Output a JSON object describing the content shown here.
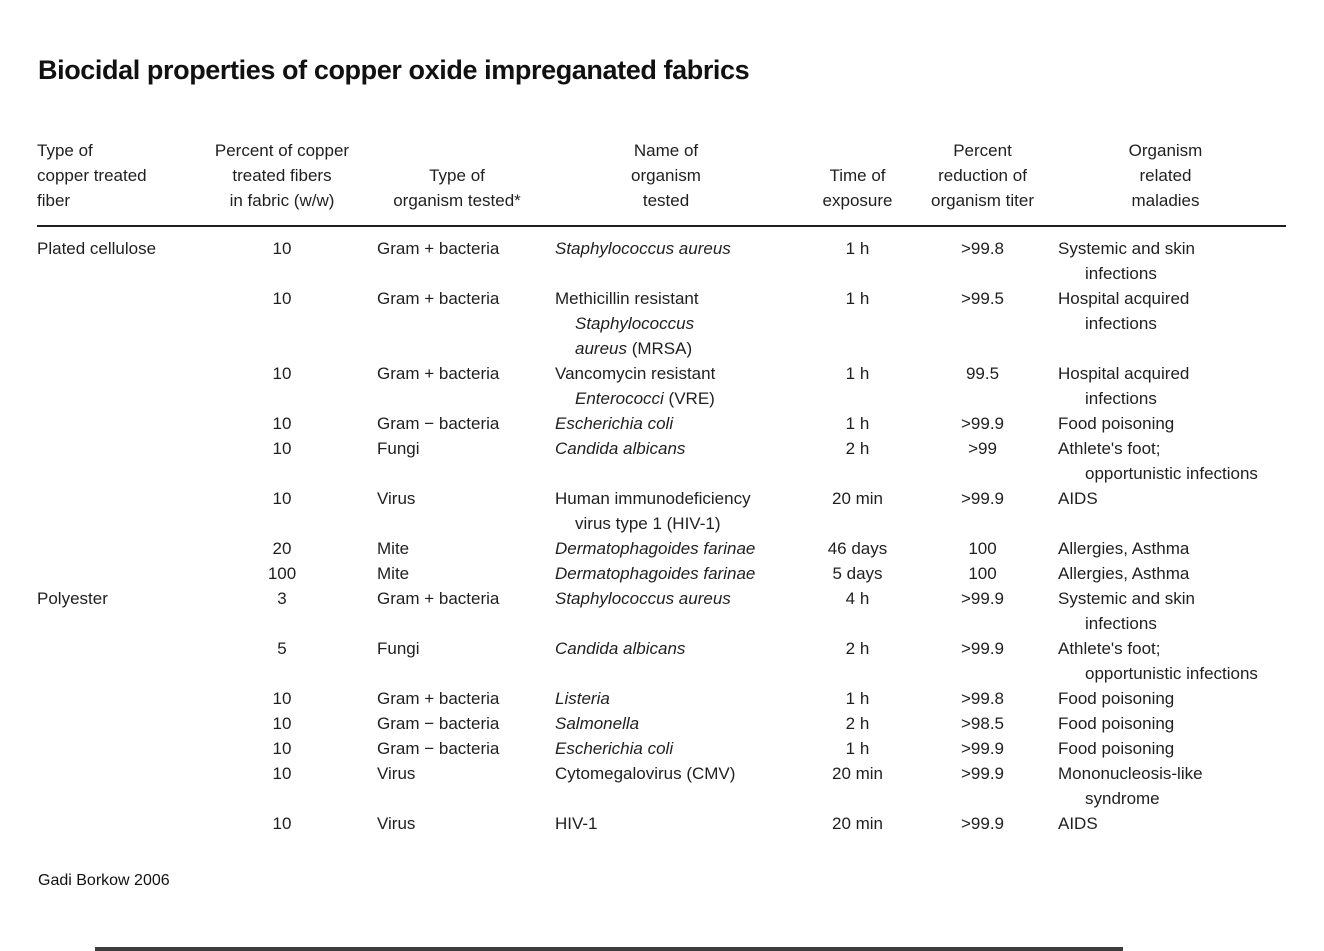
{
  "title": "Biocidal properties of copper oxide impreganated fabrics",
  "footer": {
    "credit": "Gadi Borkow  2006"
  },
  "table": {
    "headers": [
      {
        "align": "left",
        "lines": [
          "Type of",
          "copper treated",
          "fiber"
        ]
      },
      {
        "align": "center",
        "lines": [
          "Percent of copper",
          "treated fibers",
          "in fabric (w/w)"
        ]
      },
      {
        "align": "center",
        "lines": [
          "Type of",
          "organism tested*"
        ]
      },
      {
        "align": "center",
        "lines": [
          "Name of",
          "organism",
          "tested"
        ]
      },
      {
        "align": "center",
        "lines": [
          "Time of",
          "exposure"
        ]
      },
      {
        "align": "center",
        "lines": [
          "Percent",
          "reduction of",
          "organism titer"
        ]
      },
      {
        "align": "center",
        "lines": [
          "Organism",
          "related",
          "maladies"
        ]
      }
    ],
    "rows": [
      {
        "fiber": "Plated cellulose",
        "percent": "10",
        "organism_type": "Gram + bacteria",
        "organism_name": [
          {
            "seg": [
              {
                "t": "Staphylococcus aureus",
                "i": true
              }
            ]
          }
        ],
        "time": "1 h",
        "reduction": ">99.8",
        "maladies": [
          {
            "seg": [
              {
                "t": "Systemic and skin"
              }
            ]
          },
          {
            "ind": true,
            "seg": [
              {
                "t": "infections"
              }
            ]
          }
        ]
      },
      {
        "fiber": "",
        "percent": "10",
        "organism_type": "Gram + bacteria",
        "organism_name": [
          {
            "seg": [
              {
                "t": "Methicillin resistant"
              }
            ]
          },
          {
            "ind": true,
            "seg": [
              {
                "t": "Staphylococcus",
                "i": true
              }
            ]
          },
          {
            "ind": true,
            "seg": [
              {
                "t": "aureus",
                "i": true
              },
              {
                "t": " (MRSA)"
              }
            ]
          }
        ],
        "time": "1 h",
        "reduction": ">99.5",
        "maladies": [
          {
            "seg": [
              {
                "t": "Hospital acquired"
              }
            ]
          },
          {
            "ind": true,
            "seg": [
              {
                "t": "infections"
              }
            ]
          }
        ]
      },
      {
        "fiber": "",
        "percent": "10",
        "organism_type": "Gram + bacteria",
        "organism_name": [
          {
            "seg": [
              {
                "t": "Vancomycin resistant"
              }
            ]
          },
          {
            "ind": true,
            "seg": [
              {
                "t": "Enterococci",
                "i": true
              },
              {
                "t": " (VRE)"
              }
            ]
          }
        ],
        "time": "1 h",
        "reduction": "99.5",
        "maladies": [
          {
            "seg": [
              {
                "t": "Hospital acquired"
              }
            ]
          },
          {
            "ind": true,
            "seg": [
              {
                "t": "infections"
              }
            ]
          }
        ]
      },
      {
        "fiber": "",
        "percent": "10",
        "organism_type": "Gram − bacteria",
        "organism_name": [
          {
            "seg": [
              {
                "t": "Escherichia coli",
                "i": true
              }
            ]
          }
        ],
        "time": "1 h",
        "reduction": ">99.9",
        "maladies": [
          {
            "seg": [
              {
                "t": "Food poisoning"
              }
            ]
          }
        ]
      },
      {
        "fiber": "",
        "percent": "10",
        "organism_type": "Fungi",
        "organism_name": [
          {
            "seg": [
              {
                "t": "Candida albicans",
                "i": true
              }
            ]
          }
        ],
        "time": "2 h",
        "reduction": ">99",
        "maladies": [
          {
            "seg": [
              {
                "t": "Athlete's foot;"
              }
            ]
          },
          {
            "ind": true,
            "seg": [
              {
                "t": "opportunistic infections"
              }
            ]
          }
        ]
      },
      {
        "fiber": "",
        "percent": "10",
        "organism_type": "Virus",
        "organism_name": [
          {
            "seg": [
              {
                "t": "Human immunodeficiency"
              }
            ]
          },
          {
            "ind": true,
            "seg": [
              {
                "t": "virus type 1 (HIV-1)"
              }
            ]
          }
        ],
        "time": "20 min",
        "reduction": ">99.9",
        "maladies": [
          {
            "seg": [
              {
                "t": "AIDS"
              }
            ]
          }
        ]
      },
      {
        "fiber": "",
        "percent": "20",
        "organism_type": "Mite",
        "organism_name": [
          {
            "seg": [
              {
                "t": "Dermatophagoides farinae",
                "i": true
              }
            ]
          }
        ],
        "time": "46 days",
        "reduction": "100",
        "maladies": [
          {
            "seg": [
              {
                "t": "Allergies, Asthma"
              }
            ]
          }
        ]
      },
      {
        "fiber": "",
        "percent": "100",
        "organism_type": "Mite",
        "organism_name": [
          {
            "seg": [
              {
                "t": "Dermatophagoides farinae",
                "i": true
              }
            ]
          }
        ],
        "time": "5 days",
        "reduction": "100",
        "maladies": [
          {
            "seg": [
              {
                "t": "Allergies, Asthma"
              }
            ]
          }
        ]
      },
      {
        "fiber": "Polyester",
        "percent": "3",
        "organism_type": "Gram + bacteria",
        "organism_name": [
          {
            "seg": [
              {
                "t": "Staphylococcus aureus",
                "i": true
              }
            ]
          }
        ],
        "time": "4 h",
        "reduction": ">99.9",
        "maladies": [
          {
            "seg": [
              {
                "t": "Systemic and skin"
              }
            ]
          },
          {
            "ind": true,
            "seg": [
              {
                "t": "infections"
              }
            ]
          }
        ]
      },
      {
        "fiber": "",
        "percent": "5",
        "organism_type": "Fungi",
        "organism_name": [
          {
            "seg": [
              {
                "t": "Candida albicans",
                "i": true
              }
            ]
          }
        ],
        "time": "2 h",
        "reduction": ">99.9",
        "maladies": [
          {
            "seg": [
              {
                "t": "Athlete's foot;"
              }
            ]
          },
          {
            "ind": true,
            "seg": [
              {
                "t": "opportunistic infections"
              }
            ]
          }
        ]
      },
      {
        "fiber": "",
        "percent": "10",
        "organism_type": "Gram + bacteria",
        "organism_name": [
          {
            "seg": [
              {
                "t": "Listeria",
                "i": true
              }
            ]
          }
        ],
        "time": "1 h",
        "reduction": ">99.8",
        "maladies": [
          {
            "seg": [
              {
                "t": "Food poisoning"
              }
            ]
          }
        ]
      },
      {
        "fiber": "",
        "percent": "10",
        "organism_type": "Gram − bacteria",
        "organism_name": [
          {
            "seg": [
              {
                "t": "Salmonella",
                "i": true
              }
            ]
          }
        ],
        "time": "2 h",
        "reduction": ">98.5",
        "maladies": [
          {
            "seg": [
              {
                "t": "Food poisoning"
              }
            ]
          }
        ]
      },
      {
        "fiber": "",
        "percent": "10",
        "organism_type": "Gram − bacteria",
        "organism_name": [
          {
            "seg": [
              {
                "t": "Escherichia coli",
                "i": true
              }
            ]
          }
        ],
        "time": "1 h",
        "reduction": ">99.9",
        "maladies": [
          {
            "seg": [
              {
                "t": "Food poisoning"
              }
            ]
          }
        ]
      },
      {
        "fiber": "",
        "percent": "10",
        "organism_type": "Virus",
        "organism_name": [
          {
            "seg": [
              {
                "t": "Cytomegalovirus (CMV)"
              }
            ]
          }
        ],
        "time": "20 min",
        "reduction": ">99.9",
        "maladies": [
          {
            "seg": [
              {
                "t": "Mononucleosis-like"
              }
            ]
          },
          {
            "ind": true,
            "seg": [
              {
                "t": "syndrome"
              }
            ]
          }
        ]
      },
      {
        "fiber": "",
        "percent": "10",
        "organism_type": "Virus",
        "organism_name": [
          {
            "seg": [
              {
                "t": "HIV-1"
              }
            ]
          }
        ],
        "time": "20 min",
        "reduction": ">99.9",
        "maladies": [
          {
            "seg": [
              {
                "t": "AIDS"
              }
            ]
          }
        ]
      }
    ]
  }
}
